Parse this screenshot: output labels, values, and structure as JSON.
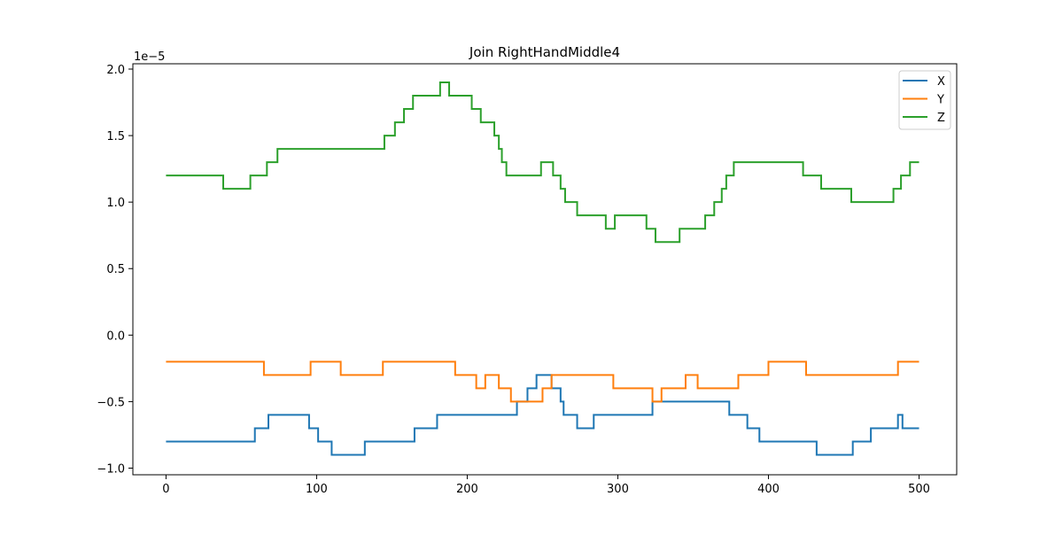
{
  "chart_data": {
    "type": "line",
    "title": "Join RightHandMiddle4",
    "xlabel": "",
    "ylabel": "",
    "y_offset_label": "1e−5",
    "xlim": [
      -22,
      525
    ],
    "ylim": [
      -1.05,
      2.04
    ],
    "x_ticks": [
      0,
      100,
      200,
      300,
      400,
      500
    ],
    "x_tick_labels": [
      "0",
      "100",
      "200",
      "300",
      "400",
      "500"
    ],
    "y_ticks": [
      -1.0,
      -0.5,
      0.0,
      0.5,
      1.0,
      1.5,
      2.0
    ],
    "y_tick_labels": [
      "−1.0",
      "−0.5",
      "0.0",
      "0.5",
      "1.0",
      "1.5",
      "2.0"
    ],
    "grid": false,
    "legend_position": "top-right",
    "series": [
      {
        "name": "X",
        "color": "#1f77b4",
        "steps": [
          [
            0,
            -0.8
          ],
          [
            59,
            -0.7
          ],
          [
            68,
            -0.6
          ],
          [
            95,
            -0.7
          ],
          [
            101,
            -0.8
          ],
          [
            110,
            -0.9
          ],
          [
            132,
            -0.8
          ],
          [
            165,
            -0.7
          ],
          [
            180,
            -0.6
          ],
          [
            233,
            -0.5
          ],
          [
            240,
            -0.4
          ],
          [
            246,
            -0.3
          ],
          [
            256,
            -0.4
          ],
          [
            262,
            -0.5
          ],
          [
            264,
            -0.6
          ],
          [
            273,
            -0.7
          ],
          [
            284,
            -0.6
          ],
          [
            323,
            -0.5
          ],
          [
            374,
            -0.6
          ],
          [
            386,
            -0.7
          ],
          [
            394,
            -0.8
          ],
          [
            432,
            -0.9
          ],
          [
            456,
            -0.8
          ],
          [
            468,
            -0.7
          ],
          [
            486,
            -0.6
          ],
          [
            489,
            -0.7
          ],
          [
            500,
            -0.7
          ]
        ]
      },
      {
        "name": "Y",
        "color": "#ff7f0e",
        "steps": [
          [
            0,
            -0.2
          ],
          [
            65,
            -0.3
          ],
          [
            96,
            -0.2
          ],
          [
            116,
            -0.3
          ],
          [
            144,
            -0.2
          ],
          [
            192,
            -0.3
          ],
          [
            206,
            -0.4
          ],
          [
            212,
            -0.3
          ],
          [
            221,
            -0.4
          ],
          [
            229,
            -0.5
          ],
          [
            250,
            -0.4
          ],
          [
            256,
            -0.3
          ],
          [
            297,
            -0.4
          ],
          [
            323,
            -0.5
          ],
          [
            329,
            -0.4
          ],
          [
            345,
            -0.3
          ],
          [
            353,
            -0.4
          ],
          [
            380,
            -0.3
          ],
          [
            400,
            -0.2
          ],
          [
            425,
            -0.3
          ],
          [
            486,
            -0.2
          ],
          [
            500,
            -0.2
          ]
        ]
      },
      {
        "name": "Z",
        "color": "#2ca02c",
        "steps": [
          [
            0,
            1.2
          ],
          [
            38,
            1.1
          ],
          [
            56,
            1.2
          ],
          [
            67,
            1.3
          ],
          [
            74,
            1.4
          ],
          [
            145,
            1.5
          ],
          [
            152,
            1.6
          ],
          [
            158,
            1.7
          ],
          [
            164,
            1.8
          ],
          [
            182,
            1.9
          ],
          [
            188,
            1.8
          ],
          [
            203,
            1.7
          ],
          [
            209,
            1.6
          ],
          [
            218,
            1.5
          ],
          [
            221,
            1.4
          ],
          [
            223,
            1.3
          ],
          [
            226,
            1.2
          ],
          [
            249,
            1.3
          ],
          [
            257,
            1.2
          ],
          [
            262,
            1.1
          ],
          [
            265,
            1.0
          ],
          [
            273,
            0.9
          ],
          [
            292,
            0.8
          ],
          [
            298,
            0.9
          ],
          [
            319,
            0.8
          ],
          [
            325,
            0.7
          ],
          [
            341,
            0.8
          ],
          [
            358,
            0.9
          ],
          [
            364,
            1.0
          ],
          [
            369,
            1.1
          ],
          [
            372,
            1.2
          ],
          [
            377,
            1.3
          ],
          [
            423,
            1.2
          ],
          [
            435,
            1.1
          ],
          [
            455,
            1.0
          ],
          [
            483,
            1.1
          ],
          [
            488,
            1.2
          ],
          [
            494,
            1.3
          ],
          [
            500,
            1.3
          ]
        ]
      }
    ]
  }
}
